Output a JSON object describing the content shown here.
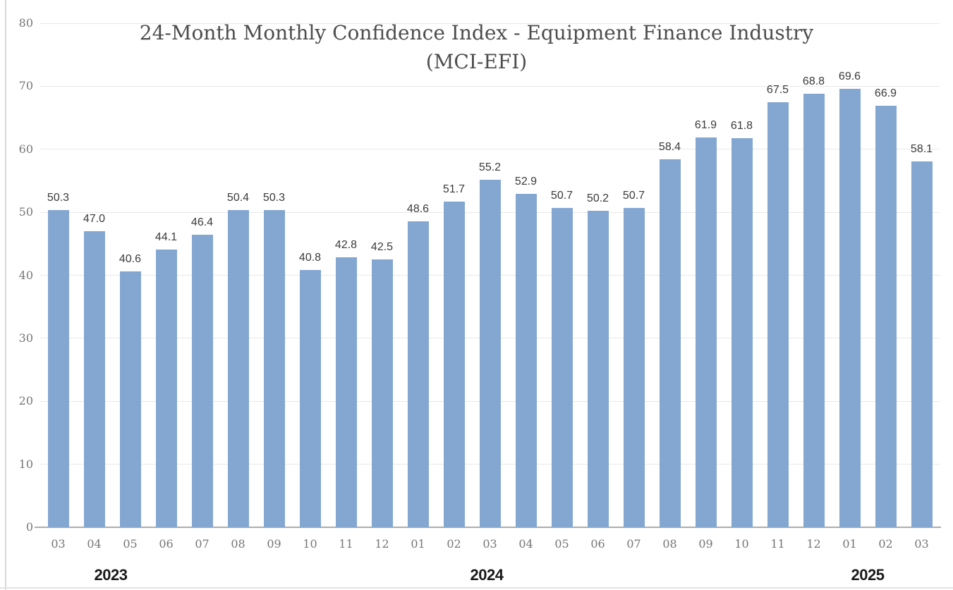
{
  "chart_data": {
    "type": "bar",
    "title": "24-Month Monthly Confidence Index - Equipment Finance Industry",
    "subtitle": "(MCI-EFI)",
    "xlabel": "",
    "ylabel": "",
    "categories": [
      "03",
      "04",
      "05",
      "06",
      "07",
      "08",
      "09",
      "10",
      "11",
      "12",
      "01",
      "02",
      "03",
      "04",
      "05",
      "06",
      "07",
      "08",
      "09",
      "10",
      "11",
      "12",
      "01",
      "02",
      "03"
    ],
    "values": [
      50.3,
      47.0,
      40.6,
      44.1,
      46.4,
      50.4,
      50.3,
      40.8,
      42.8,
      42.5,
      48.6,
      51.7,
      55.2,
      52.9,
      50.7,
      50.2,
      50.7,
      58.4,
      61.9,
      61.8,
      67.5,
      68.8,
      69.6,
      66.9,
      58.1
    ],
    "data_label_decimals": 1,
    "year_groups": [
      "2023",
      "2024",
      "2025"
    ],
    "ylim": [
      0,
      80
    ],
    "yticks": [
      0,
      10,
      20,
      30,
      40,
      50,
      60,
      70,
      80
    ],
    "grid": true,
    "legend_position": "none",
    "colors": {
      "bar": "#84a7d2",
      "gridline": "#e8e8e8",
      "axis_line": "#adadad",
      "title_text": "#4d4d4d",
      "tick_text": "#767676",
      "data_label_text": "#3a3a3a",
      "year_text": "#1a1a1a",
      "background": "#ffffff",
      "border": "#d9d9d9"
    }
  }
}
